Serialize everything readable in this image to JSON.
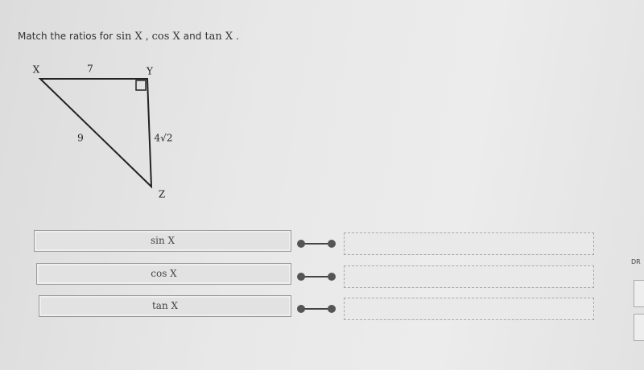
{
  "prompt": {
    "lead": "Match the ratios for",
    "terms": [
      "sin X",
      "cos X",
      "tan X"
    ],
    "joiners": [
      ",",
      "and",
      "."
    ]
  },
  "triangle": {
    "vertices": [
      "X",
      "Y",
      "Z"
    ],
    "sides": [
      "7",
      "9",
      "4√2"
    ]
  },
  "rows": [
    "sin X",
    "cos X",
    "tan X"
  ],
  "side_label": "DR"
}
